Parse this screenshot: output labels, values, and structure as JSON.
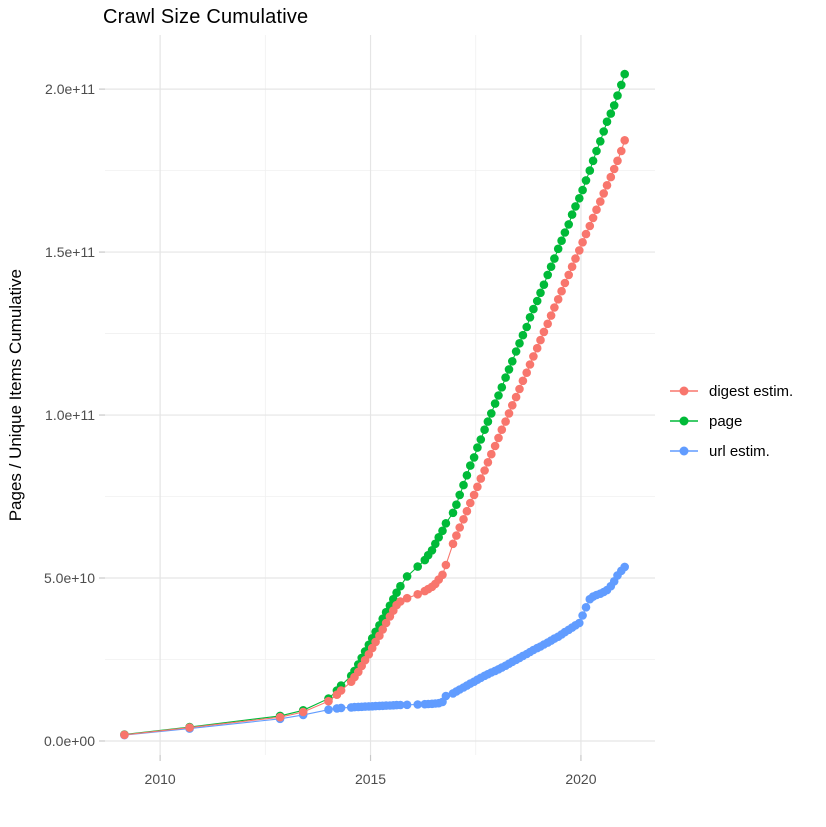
{
  "title": "Crawl Size Cumulative",
  "chart_data": {
    "type": "line",
    "title": "Crawl Size Cumulative",
    "xlabel": "",
    "ylabel": "Pages / Unique Items Cumulative",
    "y_unit_multiplier": 1000000000.0,
    "xlim": [
      2008.69,
      2021.76
    ],
    "ylim_e9": [
      -4.3,
      216.6
    ],
    "grid": true,
    "x_ticks": [
      {
        "value": 2010,
        "label": "2010"
      },
      {
        "value": 2015,
        "label": "2015"
      },
      {
        "value": 2020,
        "label": "2020"
      }
    ],
    "y_ticks": [
      {
        "value": 0,
        "label": "0.0e+00"
      },
      {
        "value": 50,
        "label": "5.0e+10"
      },
      {
        "value": 100,
        "label": "1.0e+11"
      },
      {
        "value": 150,
        "label": "1.5e+11"
      },
      {
        "value": 200,
        "label": "2.0e+11"
      }
    ],
    "x_minor": [
      2012.5,
      2017.5
    ],
    "y_minor": [
      25,
      75,
      125,
      175
    ],
    "legend": {
      "position": "right",
      "entries": [
        {
          "name": "digest estim.",
          "color": "#F8766D"
        },
        {
          "name": "page",
          "color": "#00BA38"
        },
        {
          "name": "url estim.",
          "color": "#619CFF"
        }
      ]
    },
    "x": [
      2009.15,
      2010.7,
      2012.85,
      2013.4,
      2014.0,
      2014.2,
      2014.3,
      2014.54,
      2014.62,
      2014.71,
      2014.79,
      2014.87,
      2014.96,
      2015.04,
      2015.12,
      2015.21,
      2015.29,
      2015.37,
      2015.46,
      2015.54,
      2015.62,
      2015.71,
      2015.87,
      2016.12,
      2016.29,
      2016.37,
      2016.46,
      2016.54,
      2016.62,
      2016.71,
      2016.79,
      2016.96,
      2017.04,
      2017.12,
      2017.21,
      2017.29,
      2017.37,
      2017.46,
      2017.54,
      2017.62,
      2017.71,
      2017.79,
      2017.87,
      2017.96,
      2018.04,
      2018.12,
      2018.21,
      2018.29,
      2018.37,
      2018.46,
      2018.54,
      2018.62,
      2018.71,
      2018.79,
      2018.87,
      2018.96,
      2019.04,
      2019.12,
      2019.21,
      2019.29,
      2019.37,
      2019.46,
      2019.54,
      2019.62,
      2019.71,
      2019.79,
      2019.87,
      2019.96,
      2020.04,
      2020.12,
      2020.21,
      2020.29,
      2020.37,
      2020.46,
      2020.54,
      2020.62,
      2020.71,
      2020.79,
      2020.87,
      2020.96,
      2021.04
    ],
    "series": [
      {
        "name": "page",
        "color": "#00BA38",
        "y_e9": [
          2.0,
          4.3,
          7.7,
          9.4,
          13.0,
          15.5,
          17.0,
          20.0,
          21.5,
          23.5,
          25.5,
          27.5,
          29.5,
          31.5,
          33.5,
          35.5,
          37.5,
          39.5,
          41.5,
          43.5,
          45.5,
          47.5,
          50.5,
          53.5,
          55.5,
          57.0,
          58.5,
          60.5,
          62.5,
          64.5,
          66.8,
          70.0,
          72.5,
          75.5,
          78.5,
          81.5,
          84.5,
          87.0,
          90.0,
          92.5,
          95.5,
          98.0,
          100.5,
          103.5,
          106.0,
          108.5,
          111.5,
          114.0,
          116.5,
          119.5,
          122.0,
          124.5,
          127.0,
          130.0,
          132.5,
          135.0,
          137.5,
          140.0,
          143.0,
          145.5,
          148.0,
          151.0,
          153.5,
          156.0,
          158.5,
          161.5,
          164.0,
          166.5,
          169.0,
          172.0,
          175.0,
          178.0,
          181.0,
          184.0,
          187.0,
          190.0,
          192.5,
          195.0,
          198.0,
          201.3,
          204.6
        ]
      },
      {
        "name": "url estim.",
        "color": "#619CFF",
        "y_e9": [
          1.8,
          3.8,
          6.8,
          8.0,
          9.6,
          10.0,
          10.15,
          10.3,
          10.4,
          10.45,
          10.5,
          10.55,
          10.6,
          10.65,
          10.7,
          10.75,
          10.8,
          10.85,
          10.9,
          10.95,
          11.0,
          11.05,
          11.1,
          11.2,
          11.3,
          11.35,
          11.4,
          11.5,
          11.6,
          12.0,
          13.8,
          14.6,
          15.2,
          15.8,
          16.4,
          17.0,
          17.6,
          18.2,
          18.8,
          19.4,
          20.0,
          20.5,
          21.0,
          21.5,
          22.0,
          22.5,
          23.1,
          23.7,
          24.3,
          24.9,
          25.5,
          26.1,
          26.7,
          27.3,
          27.9,
          28.5,
          29.0,
          29.6,
          30.2,
          30.8,
          31.4,
          32.0,
          32.7,
          33.4,
          34.1,
          34.8,
          35.5,
          36.2,
          38.5,
          41.0,
          43.5,
          44.3,
          44.8,
          45.2,
          45.7,
          46.3,
          47.5,
          49.0,
          50.8,
          52.2,
          53.4
        ]
      },
      {
        "name": "digest estim.",
        "color": "#F8766D",
        "y_e9": [
          1.9,
          4.1,
          7.3,
          8.9,
          12.2,
          14.2,
          15.5,
          18.2,
          19.6,
          21.2,
          23.0,
          24.8,
          26.6,
          28.5,
          30.4,
          32.3,
          34.2,
          36.2,
          38.2,
          40.0,
          41.7,
          42.8,
          43.8,
          45.0,
          46.0,
          46.6,
          47.3,
          48.2,
          49.5,
          51.0,
          54.0,
          60.5,
          63.0,
          65.5,
          68.0,
          70.5,
          73.0,
          75.5,
          78.0,
          80.5,
          83.0,
          85.5,
          88.0,
          90.5,
          93.0,
          95.5,
          98.0,
          100.5,
          103.0,
          105.5,
          108.0,
          110.5,
          113.0,
          115.5,
          118.0,
          120.5,
          123.0,
          125.5,
          128.0,
          130.5,
          133.0,
          135.5,
          138.0,
          140.5,
          143.0,
          145.5,
          148.0,
          150.5,
          153.0,
          155.5,
          158.0,
          160.5,
          163.0,
          165.5,
          168.0,
          170.5,
          173.0,
          175.5,
          178.0,
          181.0,
          184.3
        ]
      }
    ],
    "theme": {
      "background": "#FFFFFF",
      "grid_major_color": "#E5E5E5",
      "grid_minor_color": "#F0F0F0",
      "tick_color": "#C8C8C8",
      "tick_label_color": "#4D4D4D",
      "text_color": "#000000"
    }
  }
}
